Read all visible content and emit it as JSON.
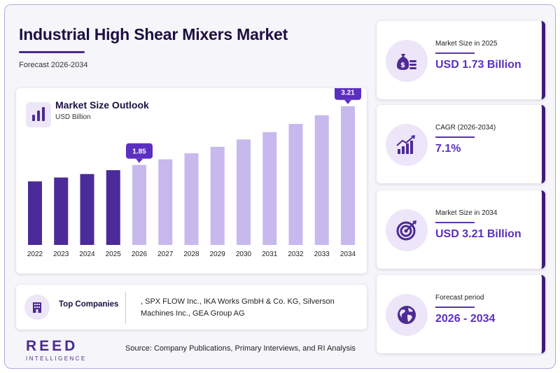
{
  "header": {
    "title": "Industrial High Shear Mixers Market",
    "subtitle": "Forecast 2026-2034"
  },
  "chart_card": {
    "title": "Market Size Outlook",
    "unit": "USD Billion"
  },
  "chart_data": {
    "type": "bar",
    "title": "Market Size Outlook",
    "ylabel": "USD Billion",
    "categories": [
      "2022",
      "2023",
      "2024",
      "2025",
      "2026",
      "2027",
      "2028",
      "2029",
      "2030",
      "2031",
      "2032",
      "2033",
      "2034"
    ],
    "values": [
      1.47,
      1.56,
      1.64,
      1.73,
      1.85,
      1.98,
      2.12,
      2.27,
      2.44,
      2.61,
      2.8,
      3.0,
      3.21
    ],
    "callouts": [
      {
        "category": "2026",
        "label": "1.85"
      },
      {
        "category": "2034",
        "label": "3.21"
      }
    ],
    "colors": {
      "historical": "#4b2a99",
      "forecast": "#c7b8ee",
      "callout": "#5b2fc0"
    },
    "forecast_start": "2026",
    "ylim": [
      0,
      3.4
    ],
    "grid": false
  },
  "companies": {
    "label": "Top Companies",
    "text": ", SPX FLOW Inc., IKA Works GmbH & Co. KG, Silverson Machines Inc., GEA Group AG",
    "icon": "building-icon"
  },
  "footer": {
    "logo_main": "REED",
    "logo_sub": "INTELLIGENCE",
    "source": "Source: Company Publications, Primary Interviews, and RI Analysis"
  },
  "stats": [
    {
      "label": "Market Size in 2025",
      "value": "USD 1.73 Billion",
      "icon": "money-bag-icon"
    },
    {
      "label": "CAGR (2026-2034)",
      "value": "7.1%",
      "icon": "growth-chart-icon"
    },
    {
      "label": "Market Size in 2034",
      "value": "USD 3.21 Billion",
      "icon": "target-icon"
    },
    {
      "label": "Forecast period",
      "value": "2026 - 2034",
      "icon": "globe-icon"
    }
  ]
}
